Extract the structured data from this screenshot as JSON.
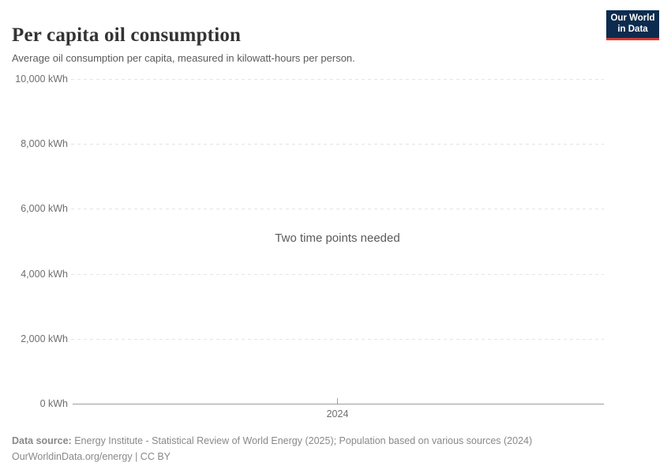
{
  "header": {
    "title": "Per capita oil consumption",
    "subtitle": "Average oil consumption per capita, measured in kilowatt-hours per person.",
    "logo": {
      "line1": "Our World",
      "line2": "in Data"
    }
  },
  "chart_data": {
    "type": "line",
    "title": "Per capita oil consumption",
    "subtitle": "Average oil consumption per capita, measured in kilowatt-hours per person.",
    "unit": "kWh",
    "series": [],
    "message": "Two time points needed",
    "ylim": [
      0,
      10000
    ],
    "yticks": [
      {
        "value": 0,
        "label": "0 kWh"
      },
      {
        "value": 2000,
        "label": "2,000 kWh"
      },
      {
        "value": 4000,
        "label": "4,000 kWh"
      },
      {
        "value": 6000,
        "label": "6,000 kWh"
      },
      {
        "value": 8000,
        "label": "8,000 kWh"
      },
      {
        "value": 10000,
        "label": "10,000 kWh"
      }
    ],
    "xticks": [
      "2024"
    ],
    "grid": "horizontal-dashed",
    "legend": "none"
  },
  "footer": {
    "source_label": "Data source:",
    "source_text": "Energy Institute - Statistical Review of World Energy (2025); Population based on various sources (2024)",
    "attribution": "OurWorldinData.org/energy | CC BY"
  },
  "colors": {
    "logo_bg": "#0d2b4e",
    "logo_accent": "#d73a33",
    "axis": "#9c9c9c",
    "gridline": "#e4e4e4",
    "tick_text": "#6e6e6e",
    "title_text": "#333333",
    "footer_text": "#898989"
  }
}
